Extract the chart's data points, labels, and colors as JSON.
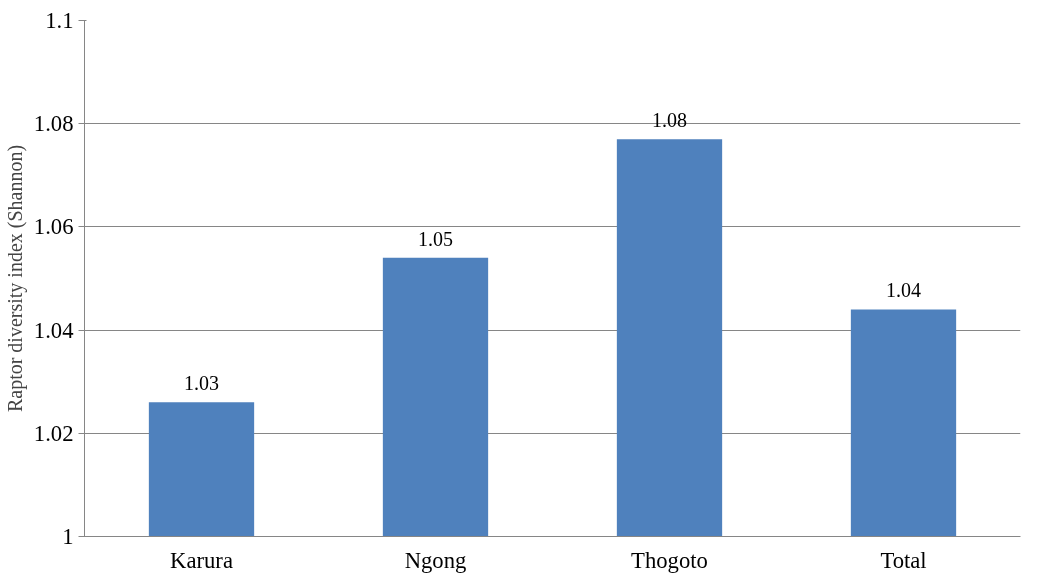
{
  "chart_data": {
    "type": "bar",
    "ylabel": "Raptor diversity index (Shannon)",
    "categories": [
      "Karura",
      "Ngong",
      "Thogoto",
      "Total"
    ],
    "values": [
      1.026,
      1.054,
      1.077,
      1.044
    ],
    "value_labels": [
      "1.03",
      "1.05",
      "1.08",
      "1.04"
    ],
    "color": "#4f81bd",
    "ylim": [
      1,
      1.1
    ],
    "yticks": [
      1,
      1.02,
      1.04,
      1.06,
      1.08,
      1.1
    ],
    "grid": "y"
  }
}
